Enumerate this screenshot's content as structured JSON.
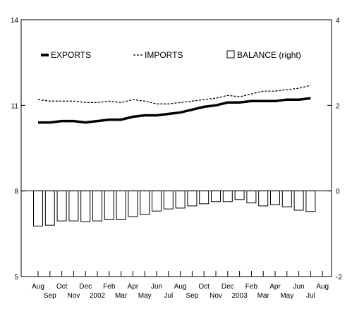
{
  "chart_data": {
    "type": "line+bar",
    "title": "",
    "left_axis": {
      "ylim": [
        5,
        14
      ],
      "ticks": [
        5,
        8,
        11,
        14
      ]
    },
    "right_axis": {
      "ylim": [
        -2,
        4
      ],
      "ticks": [
        -2,
        0,
        2,
        4
      ]
    },
    "x_labels_top": [
      "Aug",
      "Oct",
      "Dec",
      "Feb",
      "Apr",
      "Jun",
      "Aug",
      "Oct",
      "Dec",
      "Feb",
      "Apr",
      "Jun",
      "Aug"
    ],
    "x_labels_bottom": [
      "Sep",
      "Nov",
      "2002",
      "Mar",
      "May",
      "Jul",
      "Sep",
      "Nov",
      "2003",
      "Mar",
      "May",
      "Jul"
    ],
    "months": [
      "Aug 2001",
      "Sep 2001",
      "Oct 2001",
      "Nov 2001",
      "Dec 2001",
      "Jan 2002",
      "Feb 2002",
      "Mar 2002",
      "Apr 2002",
      "May 2002",
      "Jun 2002",
      "Jul 2002",
      "Aug 2002",
      "Sep 2002",
      "Oct 2002",
      "Nov 2002",
      "Dec 2002",
      "Jan 2003",
      "Feb 2003",
      "Mar 2003",
      "Apr 2003",
      "May 2003",
      "Jun 2003",
      "Jul 2003"
    ],
    "series": [
      {
        "name": "EXPORTS",
        "axis": "left",
        "style": "solid-thick",
        "color": "#000000",
        "values": [
          10.4,
          10.4,
          10.45,
          10.45,
          10.4,
          10.45,
          10.5,
          10.5,
          10.6,
          10.65,
          10.65,
          10.7,
          10.75,
          10.85,
          10.95,
          11.0,
          11.1,
          11.1,
          11.15,
          11.15,
          11.15,
          11.2,
          11.2,
          11.25
        ]
      },
      {
        "name": "IMPORTS",
        "axis": "left",
        "style": "dashed",
        "color": "#000000",
        "values": [
          11.2,
          11.15,
          11.15,
          11.15,
          11.1,
          11.1,
          11.15,
          11.1,
          11.2,
          11.15,
          11.05,
          11.05,
          11.1,
          11.15,
          11.2,
          11.25,
          11.35,
          11.3,
          11.4,
          11.5,
          11.5,
          11.55,
          11.6,
          11.7
        ]
      },
      {
        "name": "BALANCE (right)",
        "axis": "right",
        "style": "bar-outline",
        "color": "#000000",
        "values": [
          -0.82,
          -0.8,
          -0.7,
          -0.7,
          -0.72,
          -0.7,
          -0.67,
          -0.67,
          -0.6,
          -0.55,
          -0.47,
          -0.42,
          -0.4,
          -0.35,
          -0.3,
          -0.25,
          -0.25,
          -0.2,
          -0.28,
          -0.35,
          -0.32,
          -0.37,
          -0.45,
          -0.48
        ]
      }
    ],
    "legend": {
      "placement": "top",
      "items": [
        {
          "label": "EXPORTS",
          "marker": "solid-thick"
        },
        {
          "label": "IMPORTS",
          "marker": "dashed"
        },
        {
          "label": "BALANCE (right)",
          "marker": "box"
        }
      ]
    },
    "grid": false
  }
}
